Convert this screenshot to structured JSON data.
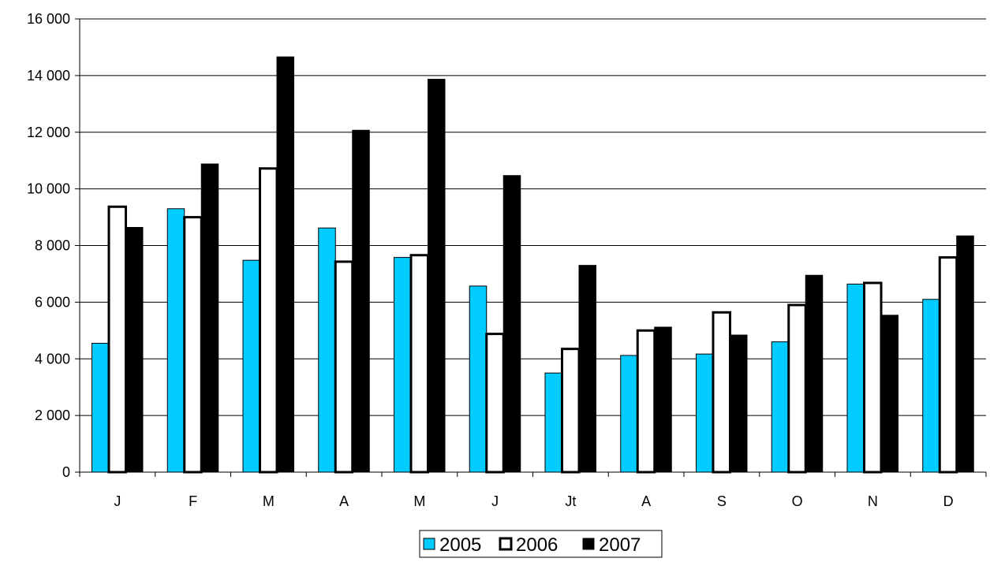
{
  "chart_data": {
    "type": "bar",
    "title": "",
    "xlabel": "",
    "ylabel": "",
    "categories": [
      "J",
      "F",
      "M",
      "A",
      "M",
      "J",
      "Jt",
      "A",
      "S",
      "O",
      "N",
      "D"
    ],
    "ylim": [
      0,
      16000
    ],
    "yticks": [
      0,
      2000,
      4000,
      6000,
      8000,
      10000,
      12000,
      14000,
      16000
    ],
    "ytick_labels": [
      "0",
      "2 000",
      "4 000",
      "6 000",
      "8 000",
      "10 000",
      "12 000",
      "14 000",
      "16 000"
    ],
    "grid": true,
    "legend_position": "bottom-center",
    "series": [
      {
        "name": "2005",
        "color": "#00CCFF",
        "values": [
          4550,
          9300,
          7480,
          8620,
          7580,
          6570,
          3500,
          4120,
          4170,
          4600,
          6640,
          6100
        ]
      },
      {
        "name": "2006",
        "color": "#FFFFFF",
        "values": [
          9370,
          9000,
          10720,
          7430,
          7660,
          4880,
          4350,
          5000,
          5640,
          5900,
          6680,
          7580
        ]
      },
      {
        "name": "2007",
        "color": "#000000",
        "values": [
          8640,
          10880,
          14660,
          12070,
          13870,
          10470,
          7300,
          5120,
          4840,
          6950,
          5540,
          8340
        ]
      }
    ]
  }
}
